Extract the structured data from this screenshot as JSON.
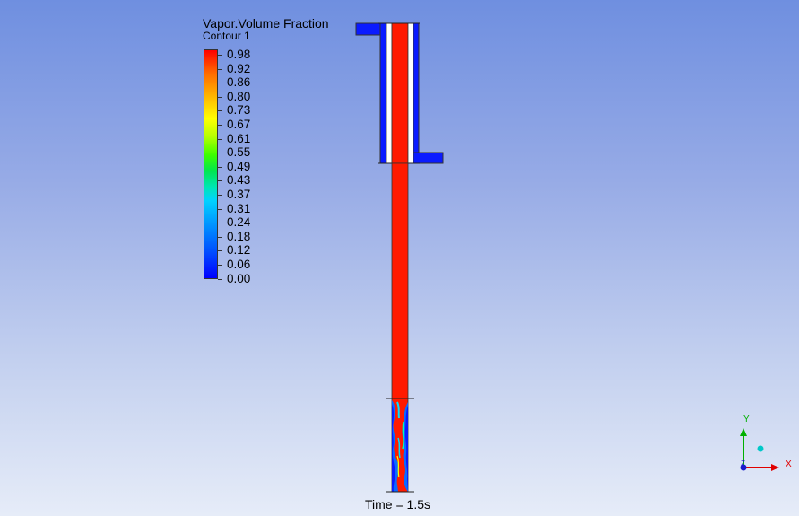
{
  "legend": {
    "title": "Vapor.Volume Fraction",
    "subtitle": "Contour 1",
    "ticks": [
      "0.98",
      "0.92",
      "0.86",
      "0.80",
      "0.73",
      "0.67",
      "0.61",
      "0.55",
      "0.49",
      "0.43",
      "0.37",
      "0.31",
      "0.24",
      "0.18",
      "0.12",
      "0.06",
      "0.00"
    ]
  },
  "time_label": "Time = 1.5s",
  "axes": {
    "x": "X",
    "y": "Y",
    "z": "Z"
  },
  "colors": {
    "vapor": "#ff1a00",
    "liquid": "#0a1aff"
  }
}
